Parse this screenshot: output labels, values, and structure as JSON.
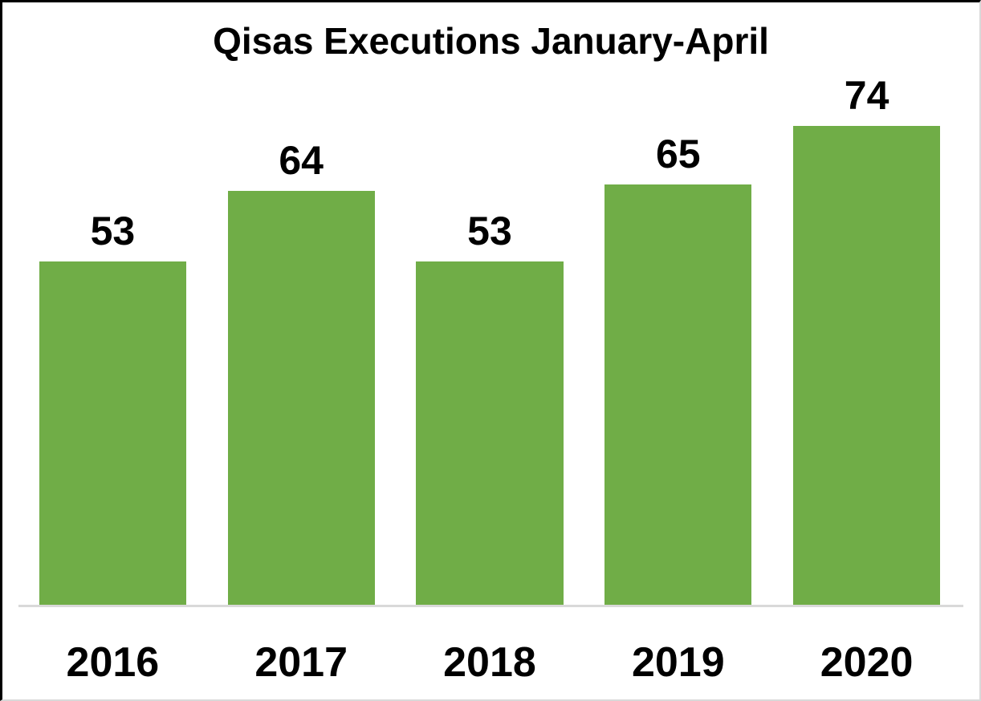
{
  "chart_data": {
    "type": "bar",
    "title": "Qisas Executions January-April",
    "categories": [
      "2016",
      "2017",
      "2018",
      "2019",
      "2020"
    ],
    "values": [
      53,
      64,
      53,
      65,
      74
    ],
    "xlabel": "",
    "ylabel": "",
    "ylim": [
      0,
      74
    ],
    "grid": false,
    "legend": "none",
    "data_labels": true,
    "colors": {
      "bar": "#70AD47",
      "label_text": "#000000",
      "title_text": "#000000",
      "axis_line": "#D9D9D9",
      "background": "#FFFFFF",
      "border_top_left": "#000000",
      "border_bottom_right": "#D9D9D9"
    }
  }
}
